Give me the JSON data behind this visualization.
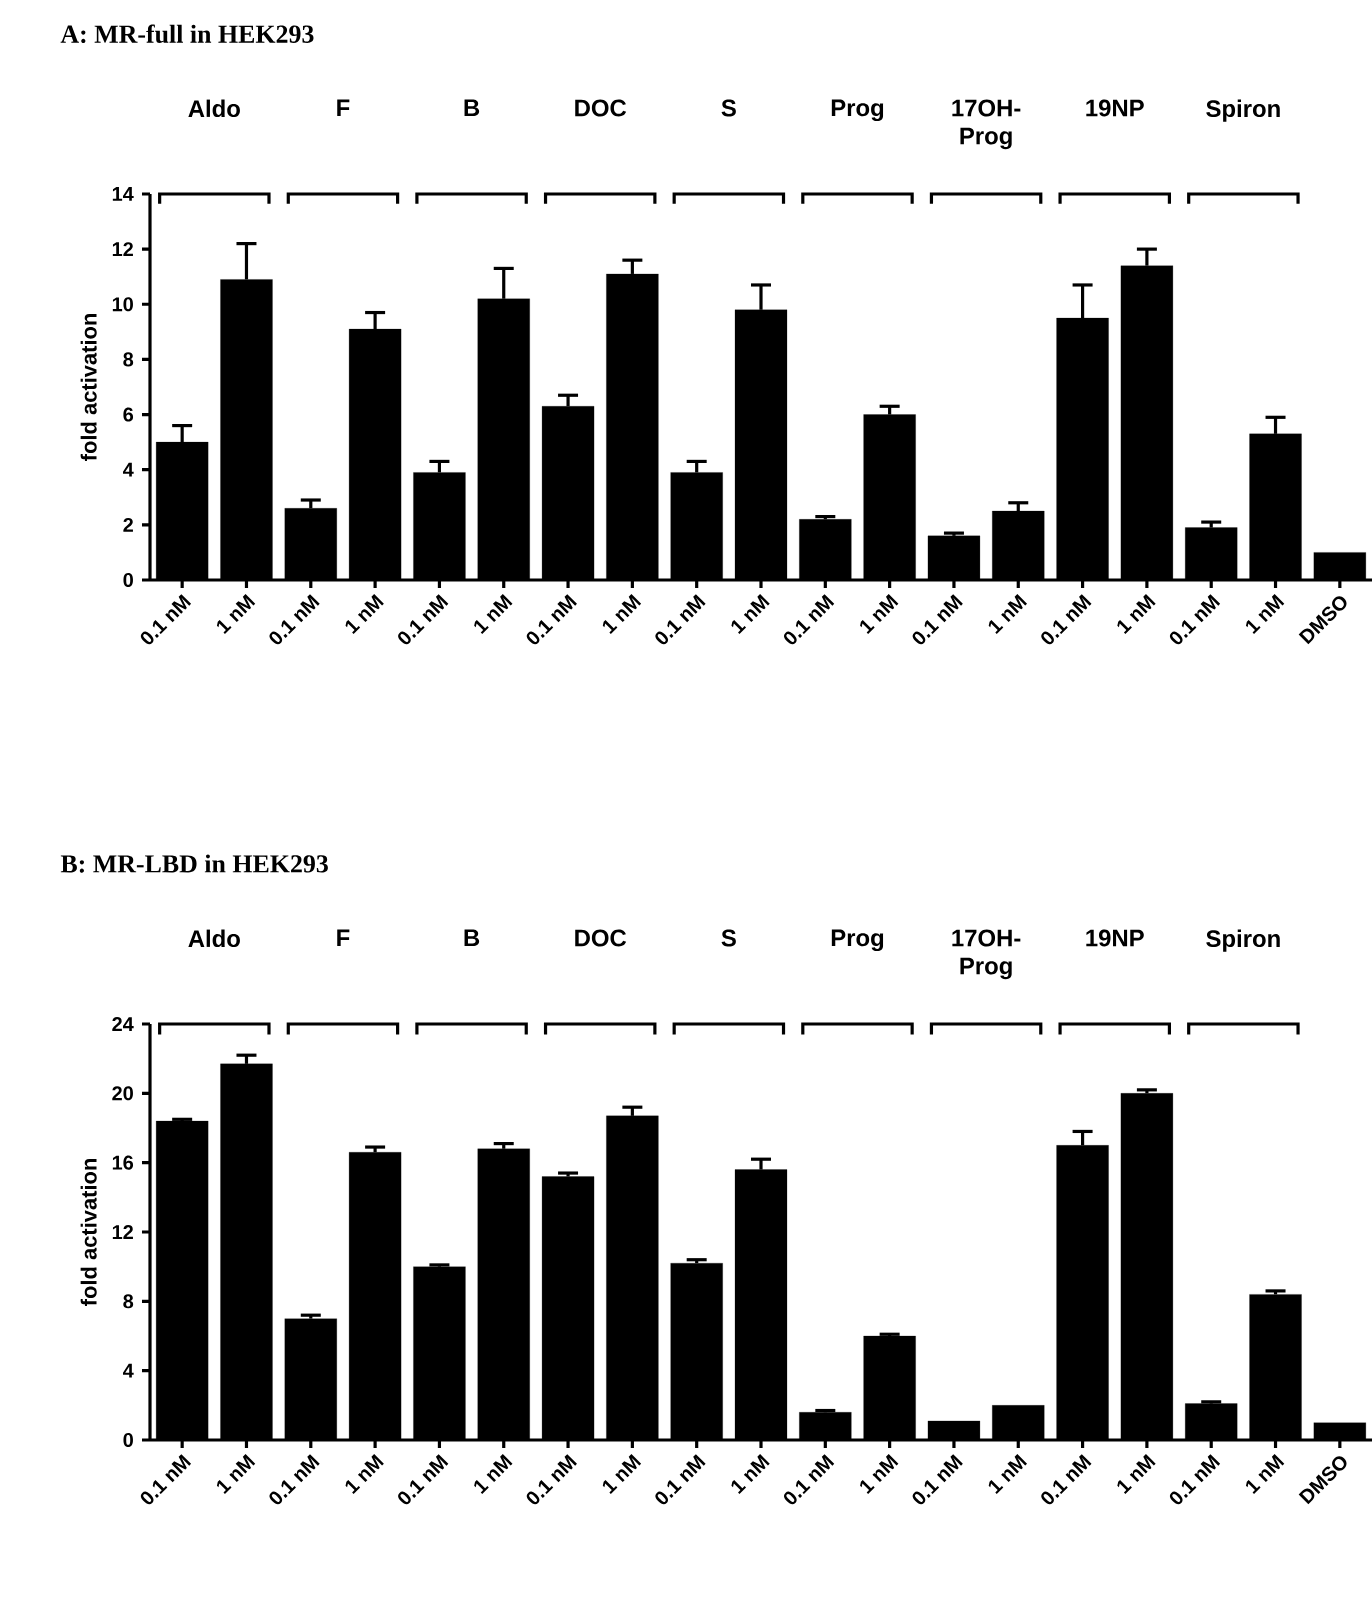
{
  "chart_data": [
    {
      "type": "bar",
      "title": "A: MR-full in HEK293",
      "ylabel": "fold activation",
      "color": "#000000",
      "categories": [
        "0.1 nM",
        "1 nM",
        "0.1 nM",
        "1 nM",
        "0.1 nM",
        "1 nM",
        "0.1 nM",
        "1 nM",
        "0.1 nM",
        "1 nM",
        "0.1 nM",
        "1 nM",
        "0.1 nM",
        "1 nM",
        "0.1 nM",
        "1 nM",
        "0.1 nM",
        "1 nM",
        "DMSO"
      ],
      "values": [
        5.0,
        10.9,
        2.6,
        9.1,
        3.9,
        10.2,
        6.3,
        11.1,
        3.9,
        9.8,
        2.2,
        6.0,
        1.6,
        2.5,
        9.5,
        11.4,
        1.9,
        5.3,
        1.0
      ],
      "errors": [
        0.6,
        1.3,
        0.3,
        0.6,
        0.4,
        1.1,
        0.4,
        0.5,
        0.4,
        0.9,
        0.1,
        0.3,
        0.1,
        0.3,
        1.2,
        0.6,
        0.2,
        0.6,
        null
      ],
      "ylim": [
        0,
        14
      ],
      "yticks": [
        0,
        2,
        4,
        6,
        8,
        10,
        12,
        14
      ],
      "annotations": [
        "Aldo",
        "F",
        "B",
        "DOC",
        "S",
        "Prog",
        "17OH-Prog",
        "19NP",
        "Spiron"
      ]
    },
    {
      "type": "bar",
      "title": "B: MR-LBD in HEK293",
      "ylabel": "fold activation",
      "color": "#000000",
      "categories": [
        "0.1 nM",
        "1 nM",
        "0.1 nM",
        "1 nM",
        "0.1 nM",
        "1 nM",
        "0.1 nM",
        "1 nM",
        "0.1 nM",
        "1 nM",
        "0.1 nM",
        "1 nM",
        "0.1 nM",
        "1 nM",
        "0.1 nM",
        "1 nM",
        "0.1 nM",
        "1 nM",
        "DMSO"
      ],
      "values": [
        18.4,
        21.7,
        7.0,
        16.6,
        10.0,
        16.8,
        15.2,
        18.7,
        10.2,
        15.6,
        1.6,
        6.0,
        1.1,
        2.0,
        17.0,
        20.0,
        2.1,
        8.4,
        1.0
      ],
      "errors": [
        0.1,
        0.5,
        0.2,
        0.3,
        0.1,
        0.3,
        0.2,
        0.5,
        0.2,
        0.6,
        0.1,
        0.1,
        null,
        null,
        0.8,
        0.2,
        0.1,
        0.2,
        null
      ],
      "ylim": [
        0,
        24
      ],
      "yticks": [
        0,
        4,
        8,
        12,
        16,
        20,
        24
      ],
      "annotations": [
        "Aldo",
        "F",
        "B",
        "DOC",
        "S",
        "Prog",
        "17OH-Prog",
        "19NP",
        "Spiron"
      ]
    }
  ]
}
